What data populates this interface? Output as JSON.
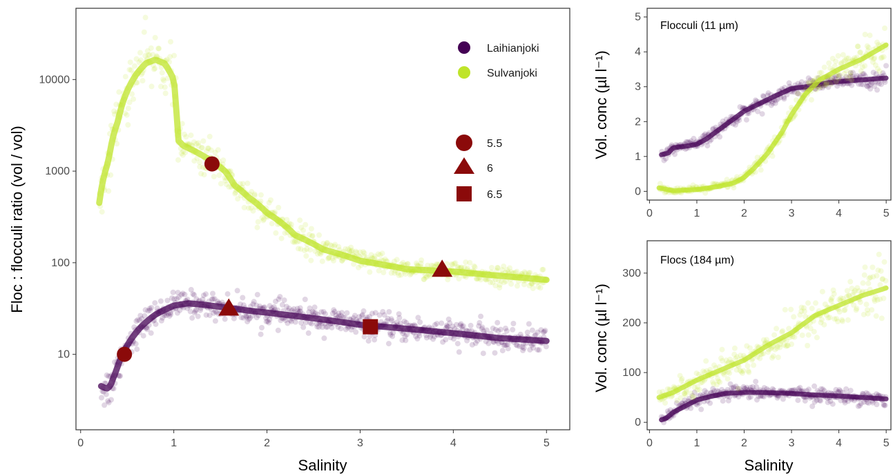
{
  "colors": {
    "laihianjoki": "#440154",
    "sulvanjoki": "#bfe42a",
    "marker": "#8b0a0a",
    "panel_border": "#333333",
    "tick_label": "#4d4d4d"
  },
  "chart_data": [
    {
      "type": "scatter",
      "id": "main",
      "xlabel": "Salinity",
      "ylabel": "Floc : flocculi ratio (vol / vol)",
      "xlim": [
        -0.05,
        5.25
      ],
      "ylim": [
        1.5,
        60000
      ],
      "y_scale": "log",
      "x_ticks": [
        0,
        1,
        2,
        3,
        4,
        5
      ],
      "y_ticks": [
        10,
        100,
        1000,
        10000
      ],
      "grid": false,
      "legend": {
        "position": "top-right",
        "series_entries": [
          {
            "label": "Laihianjoki",
            "series": "laihianjoki"
          },
          {
            "label": "Sulvanjoki",
            "series": "sulvanjoki"
          }
        ],
        "shape_entries": [
          {
            "label": "5.5",
            "shape": "circle"
          },
          {
            "label": "6",
            "shape": "triangle"
          },
          {
            "label": "6.5",
            "shape": "square"
          }
        ]
      },
      "series": [
        {
          "name": "Laihianjoki",
          "key": "laihianjoki",
          "x": [
            0.22,
            0.28,
            0.32,
            0.38,
            0.45,
            0.55,
            0.65,
            0.8,
            1.0,
            1.15,
            1.3,
            1.5,
            1.8,
            2.2,
            2.6,
            3.0,
            3.5,
            4.0,
            4.5,
            5.0
          ],
          "y": [
            4.5,
            4.2,
            4.5,
            6.5,
            10,
            15,
            20,
            27,
            34,
            36,
            35,
            33,
            30,
            27,
            24,
            21,
            19,
            17,
            15,
            14
          ],
          "spread": [
            0.12,
            0.12,
            0.12,
            0.1,
            0.1,
            0.08,
            0.08,
            0.07,
            0.07,
            0.07,
            0.07,
            0.07,
            0.07,
            0.07,
            0.07,
            0.07,
            0.07,
            0.07,
            0.07,
            0.07
          ]
        },
        {
          "name": "Sulvanjoki",
          "key": "sulvanjoki",
          "x": [
            0.2,
            0.3,
            0.4,
            0.5,
            0.6,
            0.7,
            0.8,
            0.9,
            1.0,
            1.04,
            1.1,
            1.2,
            1.4,
            1.55,
            1.65,
            1.8,
            2.0,
            2.3,
            2.6,
            3.0,
            3.5,
            4.0,
            4.5,
            5.0
          ],
          "y": [
            450,
            1300,
            3500,
            7500,
            11500,
            15000,
            16500,
            15000,
            10000,
            2200,
            1900,
            1700,
            1300,
            1000,
            700,
            520,
            350,
            200,
            140,
            105,
            85,
            80,
            72,
            65
          ],
          "spread": [
            0.16,
            0.16,
            0.16,
            0.16,
            0.16,
            0.16,
            0.16,
            0.16,
            0.14,
            0.12,
            0.1,
            0.1,
            0.1,
            0.1,
            0.09,
            0.09,
            0.09,
            0.08,
            0.07,
            0.06,
            0.05,
            0.05,
            0.05,
            0.05
          ]
        }
      ],
      "markers": [
        {
          "label": "5.5",
          "shape": "circle",
          "x": 0.47,
          "y": 10
        },
        {
          "label": "5.5",
          "shape": "circle",
          "x": 1.41,
          "y": 1200
        },
        {
          "label": "6",
          "shape": "triangle",
          "x": 1.59,
          "y": 32
        },
        {
          "label": "6",
          "shape": "triangle",
          "x": 3.88,
          "y": 85
        },
        {
          "label": "6.5",
          "shape": "square",
          "x": 3.11,
          "y": 20
        }
      ]
    },
    {
      "type": "scatter",
      "id": "flocculi",
      "title": "Flocculi (11 µm)",
      "xlabel": "",
      "ylabel": "Vol. conc (µl l⁻¹)",
      "xlim": [
        -0.05,
        5.1
      ],
      "ylim": [
        -0.25,
        5.25
      ],
      "x_ticks": [
        0,
        1,
        2,
        3,
        4,
        5
      ],
      "y_ticks": [
        0,
        1,
        2,
        3,
        4,
        5
      ],
      "grid": false,
      "series": [
        {
          "name": "Laihianjoki",
          "key": "laihianjoki",
          "x": [
            0.25,
            0.4,
            0.5,
            0.8,
            1.0,
            1.2,
            1.5,
            1.8,
            2.0,
            2.3,
            2.6,
            3.0,
            3.3,
            3.7,
            4.0,
            4.5,
            5.0
          ],
          "y": [
            1.05,
            1.1,
            1.25,
            1.3,
            1.35,
            1.5,
            1.8,
            2.1,
            2.3,
            2.5,
            2.7,
            2.95,
            3.0,
            3.1,
            3.15,
            3.2,
            3.25
          ],
          "spread": [
            0.08,
            0.08,
            0.08,
            0.08,
            0.08,
            0.08,
            0.1,
            0.1,
            0.1,
            0.1,
            0.1,
            0.1,
            0.1,
            0.1,
            0.1,
            0.12,
            0.15
          ]
        },
        {
          "name": "Sulvanjoki",
          "key": "sulvanjoki",
          "x": [
            0.2,
            0.5,
            1.0,
            1.5,
            1.8,
            2.0,
            2.2,
            2.5,
            2.8,
            3.0,
            3.3,
            3.6,
            4.0,
            4.5,
            5.0
          ],
          "y": [
            0.1,
            0.02,
            0.05,
            0.15,
            0.25,
            0.4,
            0.65,
            1.1,
            1.7,
            2.2,
            2.8,
            3.2,
            3.5,
            3.8,
            4.2
          ],
          "spread": [
            0.05,
            0.04,
            0.05,
            0.06,
            0.07,
            0.08,
            0.1,
            0.12,
            0.13,
            0.13,
            0.15,
            0.18,
            0.22,
            0.3,
            0.4
          ]
        }
      ]
    },
    {
      "type": "scatter",
      "id": "flocs",
      "title": "Flocs (184 µm)",
      "xlabel": "Salinity",
      "ylabel": "Vol. conc (µl l⁻¹)",
      "xlim": [
        -0.05,
        5.1
      ],
      "ylim": [
        -15,
        365
      ],
      "x_ticks": [
        0,
        1,
        2,
        3,
        4,
        5
      ],
      "y_ticks": [
        0,
        100,
        200,
        300
      ],
      "grid": false,
      "series": [
        {
          "name": "Laihianjoki",
          "key": "laihianjoki",
          "x": [
            0.25,
            0.35,
            0.5,
            0.8,
            1.0,
            1.3,
            1.6,
            2.0,
            2.4,
            3.0,
            3.5,
            4.0,
            4.5,
            5.0
          ],
          "y": [
            5,
            8,
            20,
            35,
            45,
            52,
            58,
            60,
            60,
            58,
            55,
            53,
            50,
            47
          ],
          "spread": [
            4,
            5,
            6,
            7,
            7,
            7,
            7,
            7,
            7,
            7,
            7,
            7,
            7,
            7
          ]
        },
        {
          "name": "Sulvanjoki",
          "key": "sulvanjoki",
          "x": [
            0.2,
            0.5,
            1.0,
            1.5,
            2.0,
            2.5,
            3.0,
            3.5,
            4.0,
            4.5,
            5.0
          ],
          "y": [
            50,
            60,
            85,
            105,
            125,
            155,
            180,
            215,
            235,
            255,
            270
          ],
          "spread": [
            8,
            10,
            12,
            14,
            16,
            18,
            20,
            22,
            24,
            26,
            28
          ]
        }
      ]
    }
  ]
}
